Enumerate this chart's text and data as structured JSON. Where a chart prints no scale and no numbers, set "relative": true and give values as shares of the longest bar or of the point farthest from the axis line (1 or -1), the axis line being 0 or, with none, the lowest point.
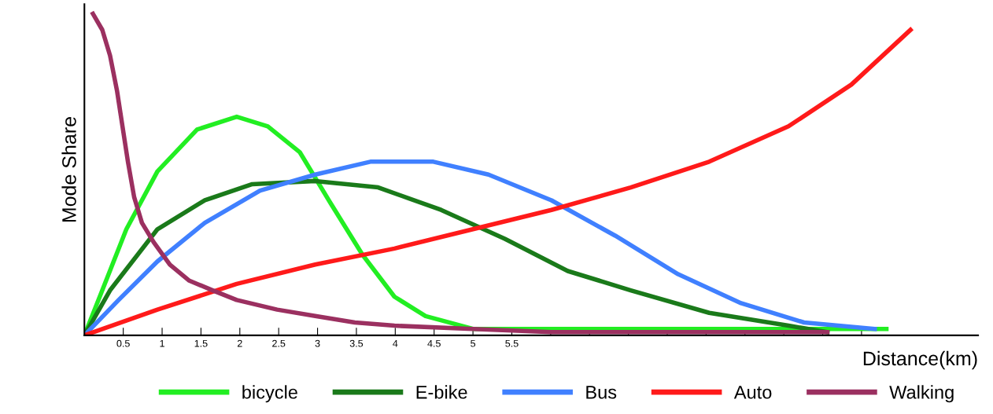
{
  "chart_data": {
    "type": "line",
    "relative": true,
    "xlabel": "Distance(km)",
    "ylabel": "Mode Share",
    "xlim": [
      0,
      11.5
    ],
    "xticks": [
      {
        "value": 0.5,
        "label": "0.5"
      },
      1,
      {
        "value": 1.5,
        "label": "1.5"
      },
      2,
      {
        "value": 2.5,
        "label": "2.5"
      },
      3,
      {
        "value": 3.5,
        "label": "3.5"
      },
      4,
      {
        "value": 4.5,
        "label": "4.5"
      },
      5,
      {
        "value": 5.5,
        "label": "5.5"
      },
      {
        "value": 6,
        "label": null
      },
      {
        "value": 6.5,
        "label": null
      },
      {
        "value": 7,
        "label": null
      },
      {
        "value": 7.5,
        "label": null
      },
      {
        "value": 8,
        "label": null
      },
      {
        "value": 8.5,
        "label": null
      },
      {
        "value": 9,
        "label": null
      },
      {
        "value": 9.5,
        "label": null
      },
      {
        "value": 10,
        "label": null
      }
    ],
    "legend": "bottom",
    "grid": false,
    "marker": "none",
    "line_style": "solid",
    "series": [
      {
        "name": "bicycle",
        "color": "#22ee22",
        "x": [
          0,
          0.23,
          0.54,
          0.94,
          1.45,
          1.96,
          2.36,
          2.77,
          3.17,
          3.58,
          3.99,
          4.39,
          5.0,
          6.01,
          10.32
        ],
        "values": [
          0,
          0.14,
          0.33,
          0.51,
          0.64,
          0.68,
          0.65,
          0.57,
          0.41,
          0.25,
          0.12,
          0.06,
          0.02,
          0.02,
          0.02
        ]
      },
      {
        "name": "E-bike",
        "color": "#1a7a1a",
        "x": [
          0,
          0.33,
          0.94,
          1.55,
          2.16,
          2.97,
          3.78,
          4.59,
          5.41,
          6.22,
          7.03,
          8.04,
          9.06,
          9.56
        ],
        "values": [
          0,
          0.14,
          0.33,
          0.42,
          0.47,
          0.48,
          0.46,
          0.39,
          0.3,
          0.2,
          0.14,
          0.07,
          0.03,
          0.01
        ]
      },
      {
        "name": "Bus",
        "color": "#4080ff",
        "x": [
          0,
          0.44,
          0.94,
          1.55,
          2.26,
          2.97,
          3.68,
          4.49,
          5.2,
          6.01,
          6.83,
          7.64,
          8.45,
          9.26,
          10.17
        ],
        "values": [
          0,
          0.11,
          0.23,
          0.35,
          0.45,
          0.5,
          0.54,
          0.54,
          0.5,
          0.42,
          0.31,
          0.19,
          0.1,
          0.04,
          0.02
        ]
      },
      {
        "name": "Auto",
        "color": "#ff1a1a",
        "x": [
          0,
          0.94,
          1.96,
          2.97,
          3.99,
          5.0,
          6.01,
          7.03,
          8.04,
          9.06,
          9.87,
          10.63
        ],
        "values": [
          0,
          0.08,
          0.16,
          0.22,
          0.27,
          0.33,
          0.39,
          0.46,
          0.54,
          0.65,
          0.78,
          0.95
        ]
      },
      {
        "name": "Walking",
        "color": "#9b3060",
        "x": [
          0.11,
          0.23,
          0.33,
          0.42,
          0.49,
          0.56,
          0.64,
          0.74,
          0.89,
          1.1,
          1.35,
          1.65,
          1.96,
          2.48,
          2.97,
          3.48,
          3.99,
          5.0,
          6.01,
          7.03,
          9.56
        ],
        "values": [
          1.0,
          0.95,
          0.87,
          0.76,
          0.65,
          0.54,
          0.43,
          0.35,
          0.29,
          0.22,
          0.17,
          0.14,
          0.11,
          0.08,
          0.06,
          0.04,
          0.03,
          0.02,
          0.01,
          0.01,
          0.01
        ]
      }
    ]
  }
}
